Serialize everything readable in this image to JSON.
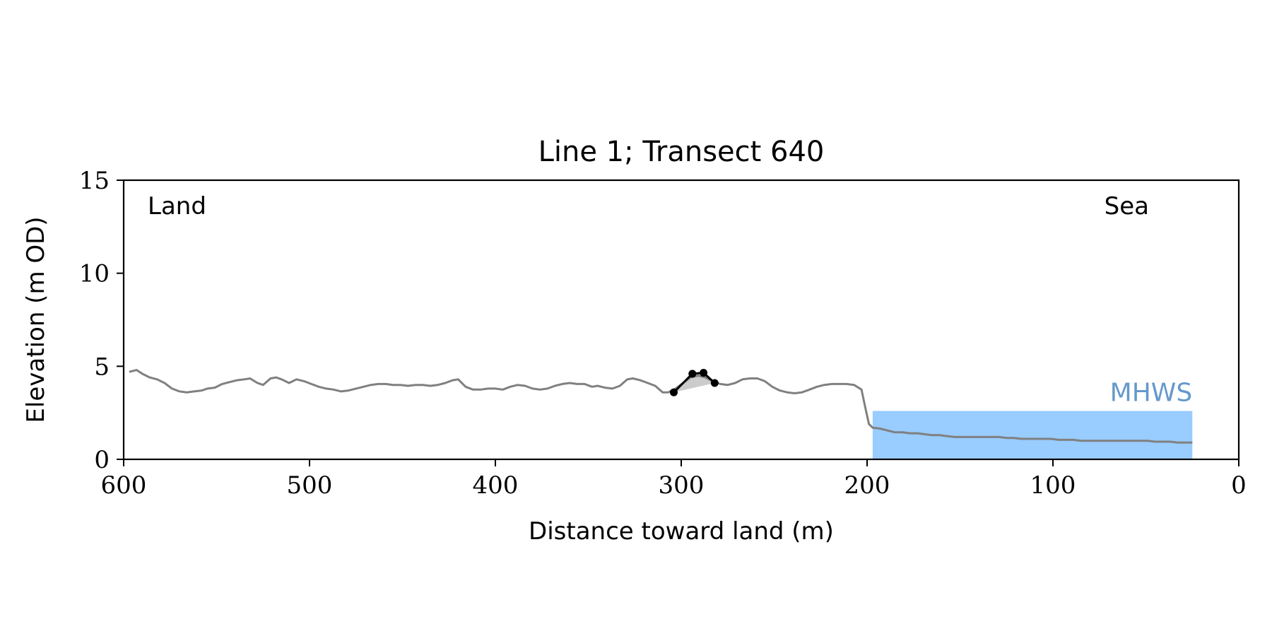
{
  "chart_data": {
    "type": "line",
    "title": "Line 1; Transect 640",
    "xlabel": "Distance toward land (m)",
    "ylabel": "Elevation (m OD)",
    "xlim": [
      600,
      0
    ],
    "ylim": [
      0,
      15
    ],
    "x_ticks": [
      600,
      500,
      400,
      300,
      200,
      100,
      0
    ],
    "y_ticks": [
      0,
      5,
      10,
      15
    ],
    "x_tick_labels": [
      "600",
      "500",
      "400",
      "300",
      "200",
      "100",
      "0"
    ],
    "y_tick_labels": [
      "0",
      "5",
      "10",
      "15"
    ],
    "grid": false,
    "annotations": {
      "land": "Land",
      "sea": "Sea",
      "mhws": "MHWS"
    },
    "colors": {
      "profile": "#808080",
      "feature": "#000000",
      "feature_fill": "#cccccc",
      "mhws_fill": "#99ccff",
      "mhws_text": "#6699cc"
    },
    "mhws": {
      "x_start": 197,
      "x_end": 25,
      "level": 2.6
    },
    "profile": {
      "x": [
        597,
        593,
        590,
        586,
        582,
        578,
        574,
        570,
        566,
        562,
        558,
        555,
        551,
        547,
        543,
        539,
        535,
        532,
        528,
        525,
        521,
        518,
        515,
        511,
        507,
        503,
        499,
        495,
        491,
        487,
        483,
        479,
        475,
        471,
        467,
        463,
        459,
        455,
        451,
        447,
        443,
        439,
        435,
        431,
        427,
        423,
        420,
        416,
        412,
        408,
        404,
        400,
        396,
        392,
        388,
        384,
        380,
        376,
        372,
        368,
        364,
        360,
        356,
        352,
        348,
        345,
        341,
        337,
        333,
        329,
        326,
        322,
        318,
        314,
        310,
        307,
        303,
        299,
        295,
        291,
        287,
        283,
        279,
        275,
        271,
        267,
        263,
        259,
        255,
        251,
        247,
        243,
        239,
        235,
        231,
        227,
        223,
        219,
        215,
        211,
        207,
        203,
        201,
        199,
        197,
        193,
        189,
        185,
        181,
        177,
        173,
        169,
        165,
        161,
        157,
        153,
        149,
        145,
        141,
        137,
        133,
        129,
        125,
        121,
        117,
        113,
        109,
        105,
        101,
        97,
        93,
        89,
        85,
        81,
        77,
        73,
        69,
        65,
        61,
        57,
        53,
        49,
        45,
        41,
        37,
        33,
        29,
        25
      ],
      "y": [
        4.7,
        4.8,
        4.6,
        4.4,
        4.3,
        4.1,
        3.8,
        3.65,
        3.6,
        3.65,
        3.7,
        3.8,
        3.85,
        4.05,
        4.15,
        4.25,
        4.3,
        4.35,
        4.1,
        4.0,
        4.35,
        4.4,
        4.3,
        4.1,
        4.3,
        4.2,
        4.05,
        3.9,
        3.8,
        3.75,
        3.65,
        3.7,
        3.8,
        3.9,
        4.0,
        4.05,
        4.05,
        4.0,
        4.0,
        3.95,
        4.0,
        4.0,
        3.95,
        4.0,
        4.1,
        4.25,
        4.3,
        3.9,
        3.75,
        3.75,
        3.8,
        3.8,
        3.75,
        3.9,
        4.0,
        3.95,
        3.8,
        3.75,
        3.8,
        3.95,
        4.05,
        4.1,
        4.05,
        4.05,
        3.9,
        3.95,
        3.85,
        3.8,
        3.95,
        4.3,
        4.35,
        4.25,
        4.1,
        3.95,
        3.6,
        3.6,
        3.8,
        4.1,
        4.4,
        4.5,
        4.4,
        4.2,
        4.05,
        4.0,
        4.1,
        4.3,
        4.35,
        4.35,
        4.2,
        3.9,
        3.7,
        3.6,
        3.55,
        3.6,
        3.75,
        3.9,
        4.0,
        4.05,
        4.05,
        4.05,
        4.0,
        3.75,
        2.8,
        1.9,
        1.7,
        1.65,
        1.55,
        1.45,
        1.45,
        1.4,
        1.4,
        1.35,
        1.3,
        1.3,
        1.25,
        1.2,
        1.2,
        1.2,
        1.2,
        1.2,
        1.2,
        1.2,
        1.15,
        1.15,
        1.1,
        1.1,
        1.1,
        1.1,
        1.1,
        1.05,
        1.05,
        1.05,
        1.0,
        1.0,
        1.0,
        1.0,
        1.0,
        1.0,
        1.0,
        1.0,
        1.0,
        1.0,
        0.95,
        0.95,
        0.95,
        0.9,
        0.9,
        0.9
      ]
    },
    "feature": {
      "x": [
        304,
        294,
        288,
        282
      ],
      "y": [
        3.6,
        4.6,
        4.65,
        4.1
      ]
    }
  }
}
